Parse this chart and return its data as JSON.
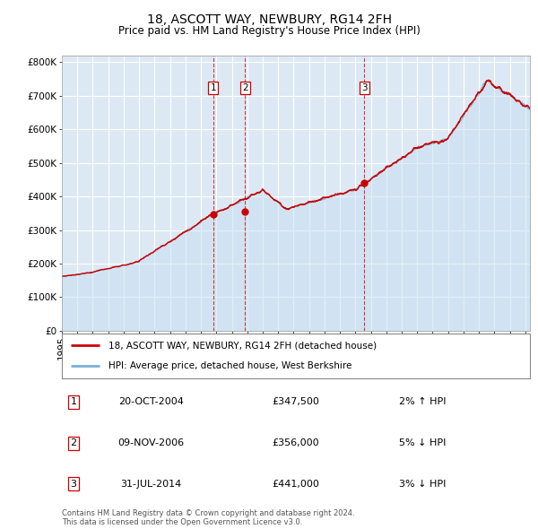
{
  "title": "18, ASCOTT WAY, NEWBURY, RG14 2FH",
  "subtitle": "Price paid vs. HM Land Registry's House Price Index (HPI)",
  "red_line_label": "18, ASCOTT WAY, NEWBURY, RG14 2FH (detached house)",
  "blue_line_label": "HPI: Average price, detached house, West Berkshire",
  "red_color": "#cc0000",
  "blue_color": "#7bafd4",
  "blue_fill_color": "#c8dff0",
  "plot_bg_color": "#dce9f5",
  "grid_color": "#ffffff",
  "purchase_dates": [
    2004.8,
    2006.86,
    2014.58
  ],
  "purchase_prices": [
    347500,
    356000,
    441000
  ],
  "purchase_labels": [
    "1",
    "2",
    "3"
  ],
  "sale_info": [
    {
      "label": "1",
      "date": "20-OCT-2004",
      "price": "£347,500",
      "hpi_diff": "2% ↑ HPI"
    },
    {
      "label": "2",
      "date": "09-NOV-2006",
      "price": "£356,000",
      "hpi_diff": "5% ↓ HPI"
    },
    {
      "label": "3",
      "date": "31-JUL-2014",
      "price": "£441,000",
      "hpi_diff": "3% ↓ HPI"
    }
  ],
  "ylabel_ticks": [
    0,
    100000,
    200000,
    300000,
    400000,
    500000,
    600000,
    700000,
    800000
  ],
  "ylabel_labels": [
    "£0",
    "£100K",
    "£200K",
    "£300K",
    "£400K",
    "£500K",
    "£600K",
    "£700K",
    "£800K"
  ],
  "footer": "Contains HM Land Registry data © Crown copyright and database right 2024.\nThis data is licensed under the Open Government Licence v3.0.",
  "start_year": 1995.0,
  "end_year": 2025.3,
  "ylim_max": 820000,
  "title_fontsize": 10,
  "subtitle_fontsize": 8.5,
  "tick_fontsize": 7.5,
  "legend_fontsize": 7.5,
  "table_fontsize": 8,
  "footer_fontsize": 6
}
